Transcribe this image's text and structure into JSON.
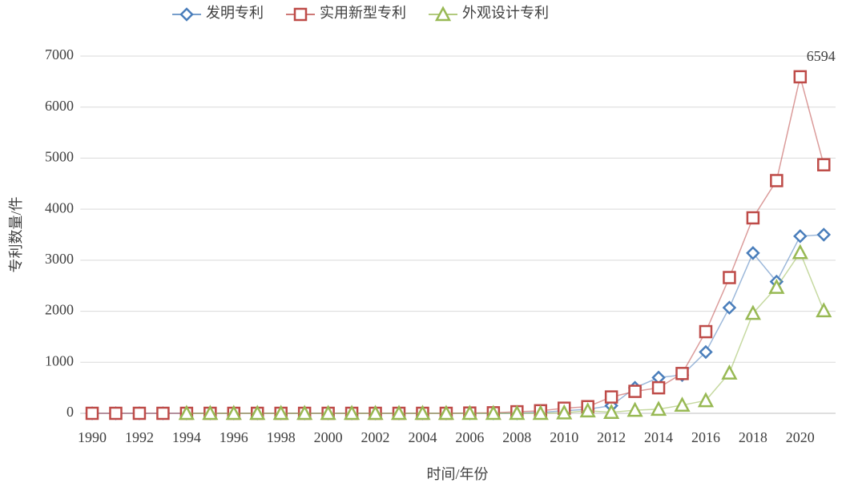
{
  "chart_data": {
    "type": "line",
    "x_label": "时间/年份",
    "y_label": "专利数量/件",
    "categories": [
      "1990",
      null,
      "1992",
      null,
      "1994",
      null,
      "1996",
      null,
      "1998",
      null,
      "2000",
      null,
      "2002",
      null,
      "2004",
      null,
      "2006",
      null,
      "2008",
      null,
      "2010",
      null,
      "2012",
      null,
      "2014",
      null,
      "2016",
      null,
      "2018",
      null,
      "2020",
      null
    ],
    "series": [
      {
        "name": "发明专利",
        "color": "#4a7ebb",
        "marker": "diamond",
        "label_max": false,
        "values": [
          0,
          0,
          0,
          0,
          0,
          0,
          0,
          0,
          0,
          0,
          0,
          0,
          0,
          0,
          0,
          0,
          0,
          0,
          0,
          20,
          50,
          80,
          150,
          500,
          700,
          750,
          1200,
          2070,
          3140,
          2580,
          3470,
          3500
        ]
      },
      {
        "name": "实用新型专利",
        "color": "#be4b48",
        "marker": "square",
        "label_max": true,
        "values": [
          0,
          0,
          0,
          0,
          0,
          0,
          0,
          0,
          0,
          0,
          0,
          0,
          0,
          0,
          0,
          0,
          5,
          10,
          30,
          50,
          100,
          130,
          320,
          430,
          500,
          780,
          1600,
          2660,
          3830,
          4560,
          6594,
          4870
        ]
      },
      {
        "name": "外观设计专利",
        "color": "#98b954",
        "marker": "triangle",
        "label_max": false,
        "values": [
          null,
          null,
          null,
          null,
          0,
          0,
          0,
          0,
          0,
          0,
          0,
          0,
          0,
          0,
          0,
          0,
          0,
          0,
          0,
          0,
          10,
          50,
          20,
          60,
          80,
          160,
          250,
          790,
          1960,
          2470,
          3150,
          2010
        ]
      }
    ],
    "ylim": [
      0,
      7000
    ],
    "yticks": [
      0,
      1000,
      2000,
      3000,
      4000,
      5000,
      6000,
      7000
    ],
    "grid": true
  }
}
